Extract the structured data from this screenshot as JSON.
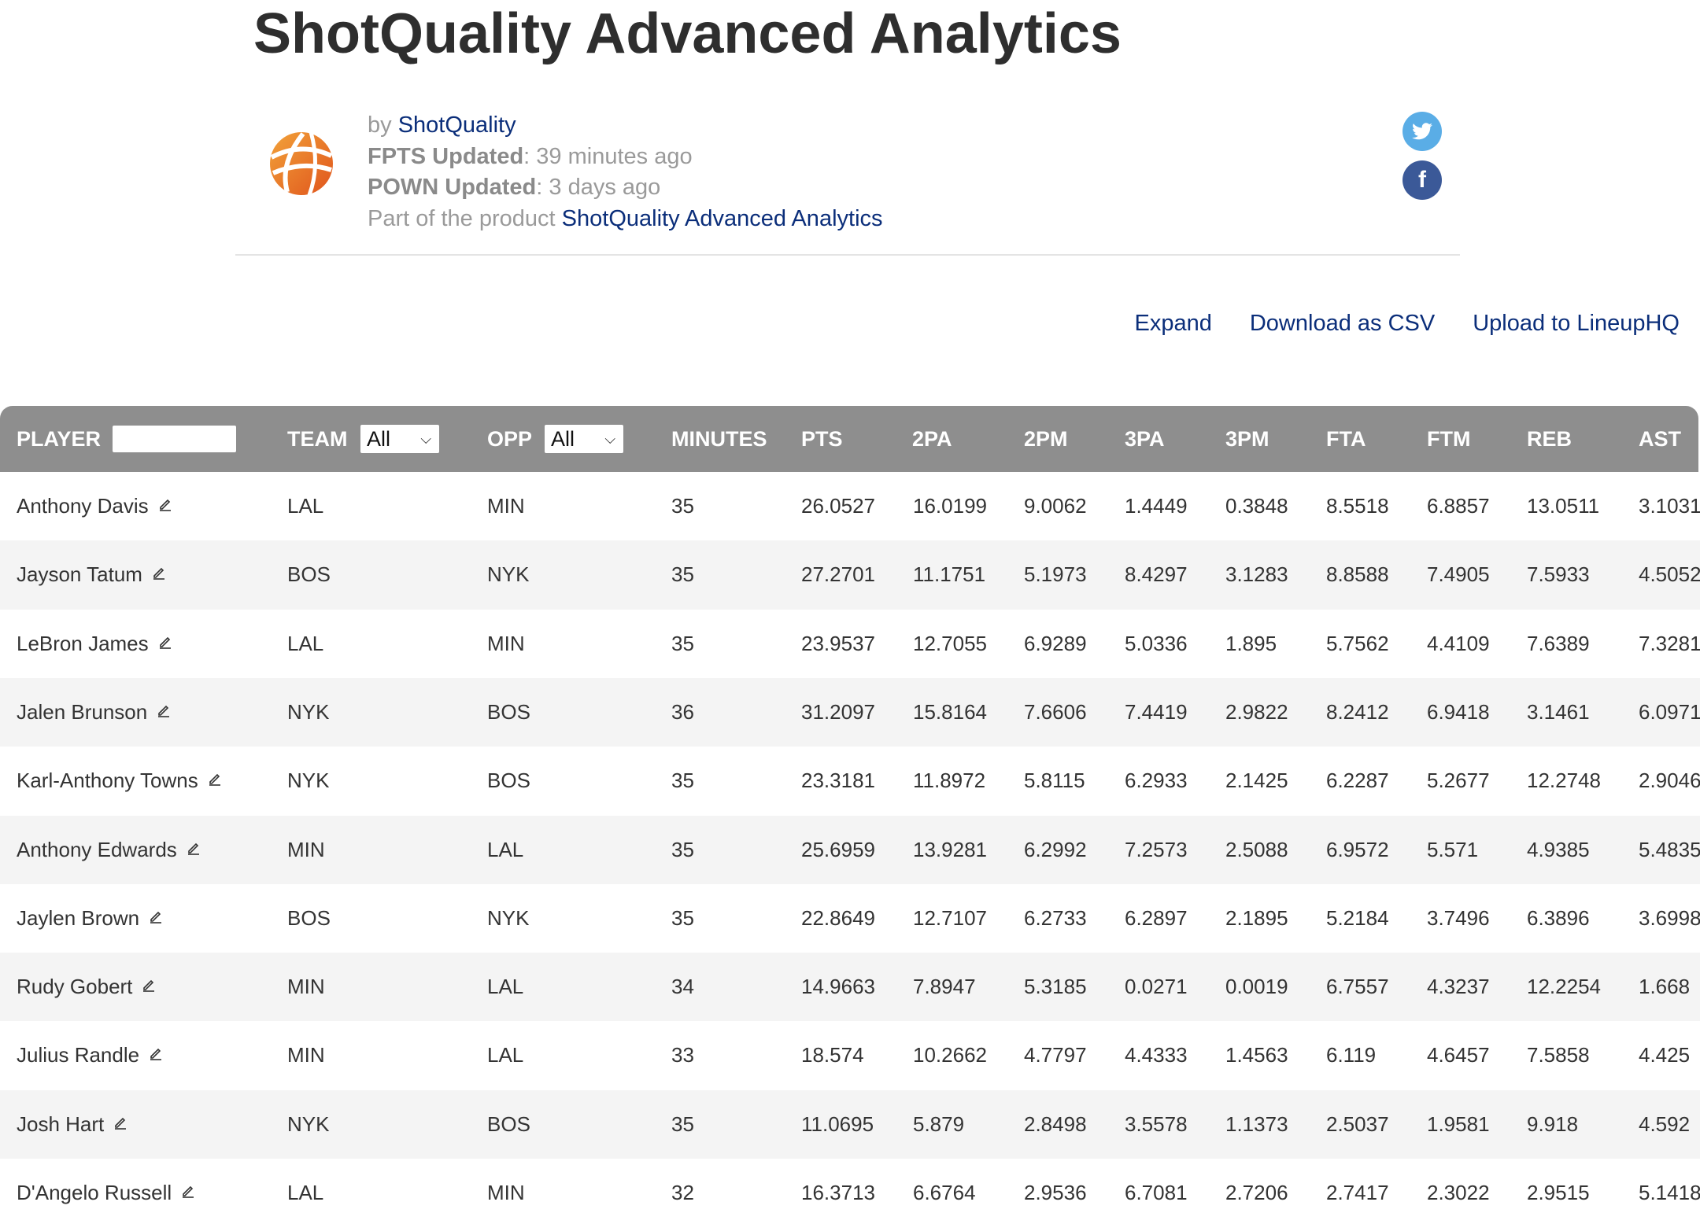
{
  "page": {
    "title": "ShotQuality Advanced Analytics"
  },
  "meta": {
    "by_prefix": "by",
    "author": "ShotQuality",
    "fpts_label": "FPTS Updated",
    "fpts_value": ": 39 minutes ago",
    "pown_label": "POWN Updated",
    "pown_value": ": 3 days ago",
    "product_prefix": "Part of the product",
    "product_name": "ShotQuality Advanced Analytics"
  },
  "social": {
    "twitter_icon": "twitter-icon",
    "facebook_icon": "facebook-icon",
    "facebook_glyph": "f",
    "twitter_color": "#5aade6",
    "facebook_color": "#3b5998"
  },
  "actions": {
    "expand": "Expand",
    "download": "Download as CSV",
    "upload": "Upload to LineupHQ"
  },
  "table": {
    "header_color": "#8e8e8e",
    "columns": {
      "player": "PLAYER",
      "team": "TEAM",
      "opp": "OPP",
      "minutes": "MINUTES",
      "pts": "PTS",
      "2pa": "2PA",
      "2pm": "2PM",
      "3pa": "3PA",
      "3pm": "3PM",
      "fta": "FTA",
      "ftm": "FTM",
      "reb": "REB",
      "ast": "AST"
    },
    "filters": {
      "player_search": "",
      "team_select": "All",
      "opp_select": "All"
    },
    "rows": [
      {
        "player": "Anthony Davis",
        "team": "LAL",
        "opp": "MIN",
        "minutes": "35",
        "pts": "26.0527",
        "2pa": "16.0199",
        "2pm": "9.0062",
        "3pa": "1.4449",
        "3pm": "0.3848",
        "fta": "8.5518",
        "ftm": "6.8857",
        "reb": "13.0511",
        "ast": "3.1031"
      },
      {
        "player": "Jayson Tatum",
        "team": "BOS",
        "opp": "NYK",
        "minutes": "35",
        "pts": "27.2701",
        "2pa": "11.1751",
        "2pm": "5.1973",
        "3pa": "8.4297",
        "3pm": "3.1283",
        "fta": "8.8588",
        "ftm": "7.4905",
        "reb": "7.5933",
        "ast": "4.5052"
      },
      {
        "player": "LeBron James",
        "team": "LAL",
        "opp": "MIN",
        "minutes": "35",
        "pts": "23.9537",
        "2pa": "12.7055",
        "2pm": "6.9289",
        "3pa": "5.0336",
        "3pm": "1.895",
        "fta": "5.7562",
        "ftm": "4.4109",
        "reb": "7.6389",
        "ast": "7.3281"
      },
      {
        "player": "Jalen Brunson",
        "team": "NYK",
        "opp": "BOS",
        "minutes": "36",
        "pts": "31.2097",
        "2pa": "15.8164",
        "2pm": "7.6606",
        "3pa": "7.4419",
        "3pm": "2.9822",
        "fta": "8.2412",
        "ftm": "6.9418",
        "reb": "3.1461",
        "ast": "6.0971"
      },
      {
        "player": "Karl-Anthony Towns",
        "team": "NYK",
        "opp": "BOS",
        "minutes": "35",
        "pts": "23.3181",
        "2pa": "11.8972",
        "2pm": "5.8115",
        "3pa": "6.2933",
        "3pm": "2.1425",
        "fta": "6.2287",
        "ftm": "5.2677",
        "reb": "12.2748",
        "ast": "2.9046"
      },
      {
        "player": "Anthony Edwards",
        "team": "MIN",
        "opp": "LAL",
        "minutes": "35",
        "pts": "25.6959",
        "2pa": "13.9281",
        "2pm": "6.2992",
        "3pa": "7.2573",
        "3pm": "2.5088",
        "fta": "6.9572",
        "ftm": "5.571",
        "reb": "4.9385",
        "ast": "5.4835"
      },
      {
        "player": "Jaylen Brown",
        "team": "BOS",
        "opp": "NYK",
        "minutes": "35",
        "pts": "22.8649",
        "2pa": "12.7107",
        "2pm": "6.2733",
        "3pa": "6.2897",
        "3pm": "2.1895",
        "fta": "5.2184",
        "ftm": "3.7496",
        "reb": "6.3896",
        "ast": "3.6998"
      },
      {
        "player": "Rudy Gobert",
        "team": "MIN",
        "opp": "LAL",
        "minutes": "34",
        "pts": "14.9663",
        "2pa": "7.8947",
        "2pm": "5.3185",
        "3pa": "0.0271",
        "3pm": "0.0019",
        "fta": "6.7557",
        "ftm": "4.3237",
        "reb": "12.2254",
        "ast": "1.668"
      },
      {
        "player": "Julius Randle",
        "team": "MIN",
        "opp": "LAL",
        "minutes": "33",
        "pts": "18.574",
        "2pa": "10.2662",
        "2pm": "4.7797",
        "3pa": "4.4333",
        "3pm": "1.4563",
        "fta": "6.119",
        "ftm": "4.6457",
        "reb": "7.5858",
        "ast": "4.425"
      },
      {
        "player": "Josh Hart",
        "team": "NYK",
        "opp": "BOS",
        "minutes": "35",
        "pts": "11.0695",
        "2pa": "5.879",
        "2pm": "2.8498",
        "3pa": "3.5578",
        "3pm": "1.1373",
        "fta": "2.5037",
        "ftm": "1.9581",
        "reb": "9.918",
        "ast": "4.592"
      },
      {
        "player": "D'Angelo Russell",
        "team": "LAL",
        "opp": "MIN",
        "minutes": "32",
        "pts": "16.3713",
        "2pa": "6.6764",
        "2pm": "2.9536",
        "3pa": "6.7081",
        "3pm": "2.7206",
        "fta": "2.7417",
        "ftm": "2.3022",
        "reb": "2.9515",
        "ast": "5.1418"
      }
    ]
  }
}
